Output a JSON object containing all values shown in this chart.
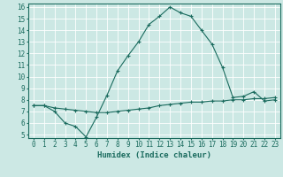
{
  "xlabel": "Humidex (Indice chaleur)",
  "bg_color": "#cce8e4",
  "line_color": "#1a6b5e",
  "x_min": 0,
  "x_max": 23,
  "y_min": 5,
  "y_max": 16,
  "curve1_x": [
    0,
    1,
    2,
    3,
    4,
    5,
    6,
    7,
    8,
    9,
    10,
    11,
    12,
    13,
    14,
    15,
    16,
    17,
    18,
    19,
    20,
    21,
    22,
    23
  ],
  "curve1_y": [
    7.5,
    7.5,
    7.0,
    6.0,
    5.7,
    4.8,
    6.5,
    8.4,
    10.5,
    11.8,
    13.0,
    14.5,
    15.2,
    16.0,
    15.5,
    15.2,
    14.0,
    12.8,
    10.8,
    8.2,
    8.3,
    8.7,
    7.9,
    8.0
  ],
  "curve2_x": [
    0,
    1,
    2,
    3,
    4,
    5,
    6,
    7,
    8,
    9,
    10,
    11,
    12,
    13,
    14,
    15,
    16,
    17,
    18,
    19,
    20,
    21,
    22,
    23
  ],
  "curve2_y": [
    7.5,
    7.5,
    7.3,
    7.2,
    7.1,
    7.0,
    6.9,
    6.9,
    7.0,
    7.1,
    7.2,
    7.3,
    7.5,
    7.6,
    7.7,
    7.8,
    7.8,
    7.9,
    7.9,
    8.0,
    8.0,
    8.1,
    8.1,
    8.2
  ],
  "tick_fontsize": 5.5,
  "xlabel_fontsize": 6.5
}
